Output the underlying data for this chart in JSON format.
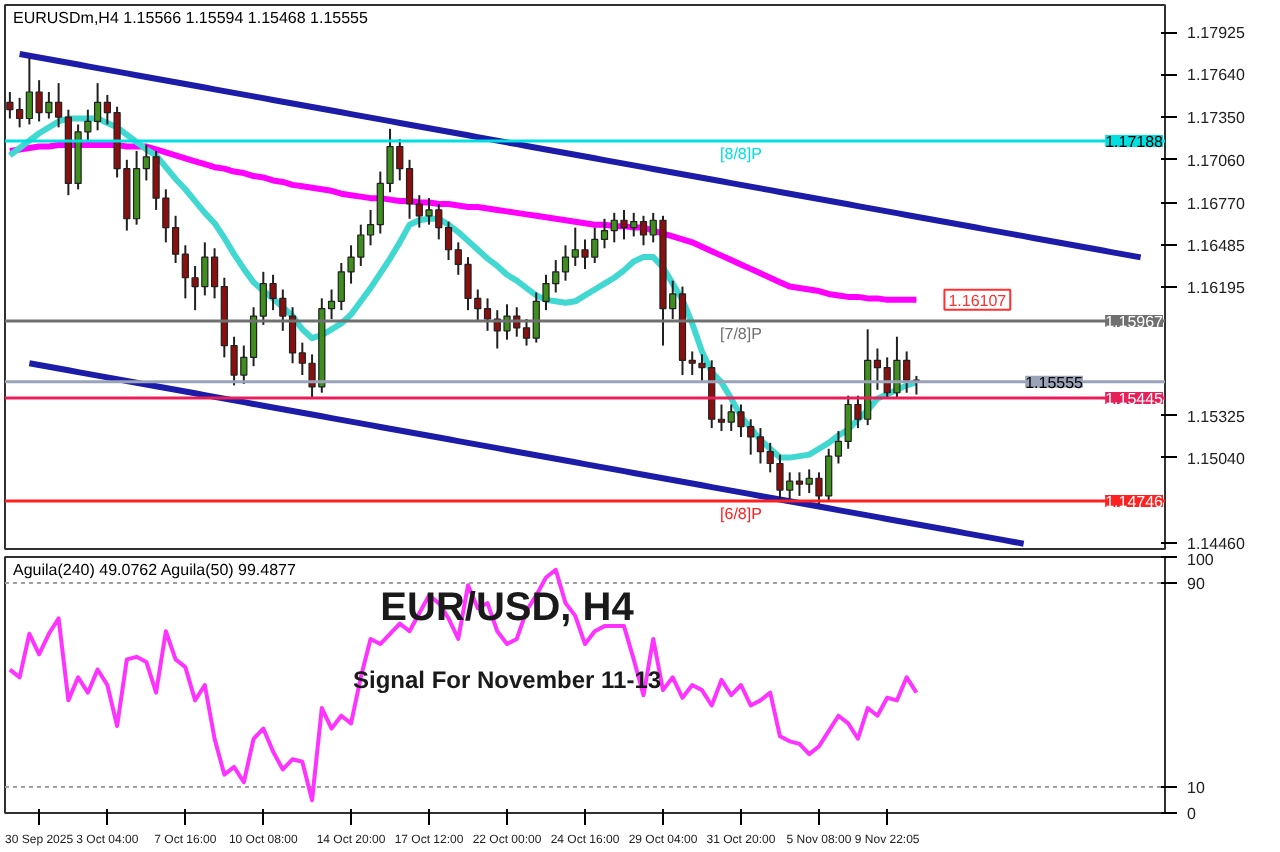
{
  "chart_data": [
    {
      "type": "candlestick",
      "title": "EURUSDm,H4  1.15566 1.15594 1.15468 1.15555",
      "categories": [
        null,
        null,
        null,
        "30 Sep 2025",
        null,
        null,
        null,
        null,
        null,
        null,
        "3 Oct 04:00",
        null,
        null,
        null,
        null,
        null,
        null,
        null,
        "7 Oct 16:00",
        null,
        null,
        null,
        null,
        null,
        null,
        null,
        "10 Oct 08:00",
        null,
        null,
        null,
        null,
        null,
        null,
        null,
        null,
        "14 Oct 20:00",
        null,
        null,
        null,
        null,
        null,
        null,
        null,
        "17 Oct 12:00",
        null,
        null,
        null,
        null,
        null,
        null,
        null,
        "22 Oct 00:00",
        null,
        null,
        null,
        null,
        null,
        null,
        null,
        "24 Oct 16:00",
        null,
        null,
        null,
        null,
        null,
        null,
        null,
        "29 Oct 04:00",
        null,
        null,
        null,
        null,
        null,
        null,
        null,
        "31 Oct 20:00",
        null,
        null,
        null,
        null,
        null,
        null,
        null,
        "5 Nov 08:00",
        null,
        null,
        null,
        null,
        null,
        null,
        "9 Nov 22:05",
        null,
        null,
        null,
        null,
        null,
        null,
        null,
        null,
        null,
        null,
        null,
        null,
        null,
        null,
        null,
        null,
        null,
        null,
        null,
        null,
        null,
        null,
        null,
        null,
        null,
        null,
        null,
        null
      ],
      "ohlc": [
        [
          1.1745,
          1.1752,
          1.1734,
          1.174
        ],
        [
          1.174,
          1.1748,
          1.1728,
          1.1734
        ],
        [
          1.1734,
          1.1775,
          1.173,
          1.1752
        ],
        [
          1.1752,
          1.176,
          1.1732,
          1.1738
        ],
        [
          1.1738,
          1.1752,
          1.1734,
          1.1745
        ],
        [
          1.1745,
          1.1758,
          1.1728,
          1.1735
        ],
        [
          1.1735,
          1.174,
          1.1682,
          1.169
        ],
        [
          1.169,
          1.173,
          1.1686,
          1.1725
        ],
        [
          1.1725,
          1.174,
          1.1718,
          1.1732
        ],
        [
          1.1732,
          1.1758,
          1.1726,
          1.1745
        ],
        [
          1.1745,
          1.175,
          1.173,
          1.1738
        ],
        [
          1.1738,
          1.1742,
          1.1694,
          1.17
        ],
        [
          1.17,
          1.1706,
          1.1658,
          1.1666
        ],
        [
          1.1666,
          1.1712,
          1.1662,
          1.17
        ],
        [
          1.17,
          1.1716,
          1.1692,
          1.1708
        ],
        [
          1.1708,
          1.1712,
          1.1672,
          1.168
        ],
        [
          1.168,
          1.1686,
          1.165,
          1.166
        ],
        [
          1.166,
          1.1668,
          1.1636,
          1.1642
        ],
        [
          1.1642,
          1.1648,
          1.1612,
          1.1626
        ],
        [
          1.1626,
          1.1634,
          1.1604,
          1.162
        ],
        [
          1.162,
          1.165,
          1.1614,
          1.164
        ],
        [
          1.164,
          1.1646,
          1.1612,
          1.162
        ],
        [
          1.162,
          1.1626,
          1.1572,
          1.158
        ],
        [
          1.158,
          1.1586,
          1.1553,
          1.156
        ],
        [
          1.156,
          1.158,
          1.1554,
          1.1572
        ],
        [
          1.1572,
          1.1606,
          1.1566,
          1.16
        ],
        [
          1.16,
          1.163,
          1.1594,
          1.1622
        ],
        [
          1.1622,
          1.1628,
          1.1604,
          1.1612
        ],
        [
          1.1612,
          1.1618,
          1.159,
          1.16
        ],
        [
          1.16,
          1.1606,
          1.1568,
          1.1575
        ],
        [
          1.1575,
          1.1582,
          1.156,
          1.1568
        ],
        [
          1.1568,
          1.1574,
          1.1544,
          1.1552
        ],
        [
          1.1552,
          1.1612,
          1.1548,
          1.1605
        ],
        [
          1.1605,
          1.1618,
          1.1598,
          1.161
        ],
        [
          1.161,
          1.1636,
          1.1604,
          1.163
        ],
        [
          1.163,
          1.1648,
          1.1622,
          1.164
        ],
        [
          1.164,
          1.1662,
          1.1634,
          1.1655
        ],
        [
          1.1655,
          1.1672,
          1.1648,
          1.1662
        ],
        [
          1.1662,
          1.1698,
          1.1656,
          1.169
        ],
        [
          1.169,
          1.1727,
          1.1684,
          1.1715
        ],
        [
          1.1715,
          1.172,
          1.1692,
          1.17
        ],
        [
          1.17,
          1.1706,
          1.1666,
          1.1676
        ],
        [
          1.1676,
          1.1682,
          1.166,
          1.1668
        ],
        [
          1.1668,
          1.168,
          1.1662,
          1.1672
        ],
        [
          1.1672,
          1.1676,
          1.1652,
          1.166
        ],
        [
          1.166,
          1.1664,
          1.1638,
          1.1645
        ],
        [
          1.1645,
          1.165,
          1.1628,
          1.1635
        ],
        [
          1.1635,
          1.164,
          1.1604,
          1.1612
        ],
        [
          1.1612,
          1.1618,
          1.1596,
          1.1605
        ],
        [
          1.1605,
          1.1612,
          1.159,
          1.1598
        ],
        [
          1.1598,
          1.1604,
          1.1578,
          1.159
        ],
        [
          1.159,
          1.1608,
          1.1584,
          1.16
        ],
        [
          1.16,
          1.1606,
          1.1586,
          1.1592
        ],
        [
          1.1592,
          1.1598,
          1.158,
          1.1585
        ],
        [
          1.1585,
          1.1616,
          1.1582,
          1.161
        ],
        [
          1.161,
          1.1628,
          1.1604,
          1.1622
        ],
        [
          1.1622,
          1.1638,
          1.1616,
          1.163
        ],
        [
          1.163,
          1.1648,
          1.1624,
          1.164
        ],
        [
          1.164,
          1.166,
          1.1634,
          1.1645
        ],
        [
          1.1645,
          1.1652,
          1.1632,
          1.164
        ],
        [
          1.164,
          1.166,
          1.1636,
          1.1652
        ],
        [
          1.1652,
          1.1666,
          1.1646,
          1.1658
        ],
        [
          1.1658,
          1.167,
          1.165,
          1.1665
        ],
        [
          1.1665,
          1.1672,
          1.1652,
          1.166
        ],
        [
          1.166,
          1.167,
          1.1654,
          1.1664
        ],
        [
          1.1664,
          1.1668,
          1.1648,
          1.1655
        ],
        [
          1.1655,
          1.167,
          1.165,
          1.1665
        ],
        [
          1.1665,
          1.1668,
          1.158,
          1.1605
        ],
        [
          1.1605,
          1.1624,
          1.1598,
          1.1615
        ],
        [
          1.1615,
          1.162,
          1.156,
          1.157
        ],
        [
          1.157,
          1.1576,
          1.156,
          1.1568
        ],
        [
          1.1568,
          1.1574,
          1.1556,
          1.1565
        ],
        [
          1.1565,
          1.157,
          1.1524,
          1.153
        ],
        [
          1.153,
          1.154,
          1.1522,
          1.1528
        ],
        [
          1.1528,
          1.154,
          1.1522,
          1.1535
        ],
        [
          1.1535,
          1.154,
          1.1518,
          1.1525
        ],
        [
          1.1525,
          1.153,
          1.1506,
          1.1518
        ],
        [
          1.1518,
          1.1524,
          1.15,
          1.1508
        ],
        [
          1.1508,
          1.1514,
          1.1494,
          1.15
        ],
        [
          1.15,
          1.1506,
          1.1476,
          1.1482
        ],
        [
          1.1482,
          1.1494,
          1.1476,
          1.1488
        ],
        [
          1.1488,
          1.1494,
          1.1478,
          1.1486
        ],
        [
          1.1486,
          1.1496,
          1.148,
          1.149
        ],
        [
          1.149,
          1.1494,
          1.1472,
          1.1478
        ],
        [
          1.1478,
          1.151,
          1.1474,
          1.1505
        ],
        [
          1.1505,
          1.1522,
          1.15,
          1.1515
        ],
        [
          1.1515,
          1.1546,
          1.151,
          1.154
        ],
        [
          1.154,
          1.1546,
          1.1524,
          1.153
        ],
        [
          1.153,
          1.1591,
          1.1526,
          1.157
        ],
        [
          1.157,
          1.1578,
          1.155,
          1.1565
        ],
        [
          1.1565,
          1.1572,
          1.1544,
          1.1548
        ],
        [
          1.1548,
          1.1586,
          1.1544,
          1.157
        ],
        [
          1.157,
          1.1576,
          1.1548,
          1.15566
        ],
        [
          1.15566,
          1.15594,
          1.15468,
          1.15555
        ],
        null,
        null,
        null,
        null,
        null,
        null,
        null,
        null,
        null,
        null,
        null,
        null,
        null,
        null,
        null,
        null,
        null,
        null,
        null,
        null,
        null,
        null,
        null,
        null,
        null
      ],
      "series": [
        {
          "type": "line",
          "color": "#ff00ff",
          "values": [
            1.1712,
            1.1713,
            1.1714,
            1.1715,
            1.1715,
            1.1716,
            1.1716,
            1.1716,
            1.1716,
            1.1716,
            1.1716,
            1.1716,
            1.1715,
            1.1715,
            1.1715,
            1.1713,
            1.1711,
            1.1709,
            1.1707,
            1.1705,
            1.1703,
            1.1701,
            1.17,
            1.1698,
            1.1697,
            1.1695,
            1.1694,
            1.1692,
            1.1691,
            1.1689,
            1.1688,
            1.1687,
            1.1686,
            1.1685,
            1.1683,
            1.1682,
            1.1681,
            1.168,
            1.168,
            1.1679,
            1.1678,
            1.1678,
            1.1677,
            1.1677,
            1.1676,
            1.1676,
            1.1675,
            1.1674,
            1.1674,
            1.1673,
            1.1672,
            1.1671,
            1.167,
            1.1669,
            1.1668,
            1.1667,
            1.1666,
            1.1665,
            1.1664,
            1.1663,
            1.1662,
            1.1662,
            1.1661,
            1.1661,
            1.166,
            1.166,
            1.1658,
            1.1656,
            1.1654,
            1.1652,
            1.165,
            1.1647,
            1.1644,
            1.1641,
            1.1638,
            1.1635,
            1.1632,
            1.1629,
            1.1626,
            1.1623,
            1.162,
            1.1619,
            1.1618,
            1.1617,
            1.1615,
            1.1614,
            1.1613,
            1.1613,
            1.1612,
            1.1612,
            1.1611,
            1.1611,
            1.1611,
            1.1611,
            null,
            null,
            null,
            null,
            null,
            null,
            null,
            null,
            null,
            null,
            null,
            null,
            null,
            null,
            null,
            null,
            null,
            null,
            null,
            null,
            null,
            null,
            null,
            null,
            null
          ]
        },
        {
          "type": "line",
          "color": "#40d8d0",
          "values": [
            1.1709,
            1.1714,
            1.1719,
            1.1724,
            1.1728,
            1.1732,
            1.1734,
            1.1734,
            1.1734,
            1.1734,
            1.1731,
            1.1728,
            1.1723,
            1.1718,
            1.1713,
            1.1709,
            1.1701,
            1.1693,
            1.1686,
            1.1678,
            1.167,
            1.1663,
            1.1653,
            1.1642,
            1.1632,
            1.1623,
            1.1617,
            1.1612,
            1.1606,
            1.16,
            1.1591,
            1.1585,
            1.1587,
            1.1591,
            1.1595,
            1.1601,
            1.161,
            1.1619,
            1.1629,
            1.1639,
            1.165,
            1.1662,
            1.1665,
            1.1666,
            1.1666,
            1.1662,
            1.1657,
            1.1651,
            1.1645,
            1.1639,
            1.1634,
            1.1628,
            1.1624,
            1.1619,
            1.1614,
            1.1611,
            1.161,
            1.1609,
            1.161,
            1.1614,
            1.1618,
            1.1622,
            1.1626,
            1.1631,
            1.1637,
            1.164,
            1.164,
            1.1633,
            1.1622,
            1.1611,
            1.1595,
            1.1576,
            1.1562,
            1.1555,
            1.1544,
            1.1532,
            1.1524,
            1.1516,
            1.151,
            1.1504,
            1.1504,
            1.1505,
            1.1506,
            1.151,
            1.1514,
            1.1519,
            1.1523,
            1.153,
            1.1536,
            1.1544,
            1.1547,
            1.155,
            1.1553,
            1.1555,
            null,
            null,
            null,
            null,
            null,
            null,
            null,
            null,
            null,
            null,
            null,
            null,
            null,
            null,
            null,
            null,
            null,
            null,
            null,
            null,
            null,
            null,
            null,
            null,
            null
          ]
        },
        {
          "type": "line",
          "color": "#1c1ca8",
          "values": [
            null,
            1.17778,
            1.17766,
            1.17754,
            1.17742,
            1.1773,
            1.17718,
            1.17706,
            1.17694,
            1.17682,
            1.1767,
            1.17658,
            1.17646,
            1.17634,
            1.17622,
            1.1761,
            1.17598,
            1.17586,
            1.17574,
            1.17562,
            1.1755,
            1.17538,
            1.17526,
            1.17514,
            1.17502,
            1.1749,
            1.17478,
            1.17466,
            1.17454,
            1.17442,
            1.1743,
            1.17418,
            1.17406,
            1.17394,
            1.17382,
            1.1737,
            1.17358,
            1.17346,
            1.17334,
            1.17322,
            1.1731,
            1.17298,
            1.17286,
            1.17274,
            1.17262,
            1.1725,
            1.17238,
            1.17226,
            1.17214,
            1.17202,
            1.1719,
            1.17178,
            1.17166,
            1.17154,
            1.17142,
            1.1713,
            1.17118,
            1.17106,
            1.17094,
            1.17082,
            1.1707,
            1.17058,
            1.17046,
            1.17034,
            1.17022,
            1.1701,
            1.16998,
            1.16986,
            1.16974,
            1.16962,
            1.1695,
            1.16938,
            1.16926,
            1.16914,
            1.16902,
            1.1689,
            1.16878,
            1.16866,
            1.16854,
            1.16842,
            1.1683,
            1.16818,
            1.16806,
            1.16794,
            1.16782,
            1.1677,
            1.16758,
            1.16746,
            1.16734,
            1.16722,
            1.1671,
            1.16698,
            1.16686,
            1.16674,
            1.16662,
            1.1665,
            1.16638,
            1.16626,
            1.16614,
            1.16602,
            1.1659,
            1.16578,
            1.16566,
            1.16554,
            1.16542,
            1.1653,
            1.16518,
            1.16506,
            1.16494,
            1.16482,
            1.1647,
            1.16458,
            1.16446,
            1.16434,
            1.16422,
            1.1641,
            1.16398,
            null,
            null
          ]
        },
        {
          "type": "line",
          "color": "#1c1ca8",
          "values": [
            null,
            null,
            1.1568,
            1.15668,
            1.15656,
            1.15644,
            1.15632,
            1.1562,
            1.15608,
            1.15596,
            1.15584,
            1.15572,
            1.1556,
            1.15548,
            1.15536,
            1.15524,
            1.15512,
            1.155,
            1.15488,
            1.15476,
            1.15464,
            1.15452,
            1.1544,
            1.15428,
            1.15416,
            1.15404,
            1.15392,
            1.1538,
            1.15368,
            1.15356,
            1.15344,
            1.15332,
            1.1532,
            1.15308,
            1.15296,
            1.15284,
            1.15272,
            1.1526,
            1.15248,
            1.15236,
            1.15224,
            1.15212,
            1.152,
            1.15188,
            1.15176,
            1.15164,
            1.15152,
            1.1514,
            1.15128,
            1.15116,
            1.15104,
            1.15092,
            1.1508,
            1.15068,
            1.15056,
            1.15044,
            1.15032,
            1.1502,
            1.15008,
            1.14996,
            1.14984,
            1.14972,
            1.1496,
            1.14948,
            1.14936,
            1.14924,
            1.14912,
            1.149,
            1.14888,
            1.14876,
            1.14864,
            1.14852,
            1.1484,
            1.14828,
            1.14816,
            1.14804,
            1.14792,
            1.1478,
            1.14768,
            1.14756,
            1.14744,
            1.14732,
            1.1472,
            1.14708,
            1.14696,
            1.14684,
            1.14672,
            1.1466,
            1.14648,
            1.14636,
            1.14624,
            1.14612,
            1.146,
            1.14588,
            1.14576,
            1.14564,
            1.14552,
            1.1454,
            1.14528,
            1.14516,
            1.14504,
            1.14492,
            1.1448,
            1.14468,
            1.14456,
            null,
            null,
            null,
            null,
            null,
            null,
            null,
            null,
            null,
            null,
            null,
            null,
            null,
            null
          ]
        }
      ],
      "ylim": [
        1.1442,
        1.1811
      ],
      "yticks": [
        {
          "value": 1.17925,
          "label": "1.17925"
        },
        {
          "value": 1.1764,
          "label": "1.17640"
        },
        {
          "value": 1.1735,
          "label": "1.17350"
        },
        {
          "value": 1.1706,
          "label": "1.17060"
        },
        {
          "value": 1.1677,
          "label": "1.16770"
        },
        {
          "value": 1.16485,
          "label": "1.16485"
        },
        {
          "value": 1.16195,
          "label": "1.16195"
        },
        {
          "value": 1.15325,
          "label": "1.15325"
        },
        {
          "value": 1.1504,
          "label": "1.15040"
        },
        {
          "value": 1.1446,
          "label": "1.14460"
        }
      ],
      "tick_labels": "y",
      "ref_lines": [
        {
          "axis": "y",
          "value": 1.17188,
          "label": "1.17188",
          "color": "#00e0e0"
        },
        {
          "axis": "y",
          "value": 1.15967,
          "label": "1.15967",
          "color": "#707070"
        },
        {
          "axis": "y",
          "value": 1.15555,
          "label": "1.15555",
          "color": "#9aa4b8"
        },
        {
          "axis": "y",
          "value": 1.15445,
          "label": "1.15445",
          "color": "#e8205a"
        },
        {
          "axis": "y",
          "value": 1.14746,
          "label": "1.14746",
          "color": "#ff2020"
        }
      ],
      "annotations": [
        {
          "text": "[8/8]P",
          "x": "31 Oct 20:00",
          "y": 1.17188
        },
        {
          "text": "[7/8]P",
          "x": "31 Oct 20:00",
          "y": 1.15967
        },
        {
          "text": "[6/8]P",
          "x": "31 Oct 20:00",
          "y": 1.14746
        },
        "1.16107"
      ]
    },
    {
      "type": "line",
      "title": "Aguila(240) 49.0762  Aguila(50) 99.4877",
      "categories": [
        null,
        null,
        null,
        "30 Sep 2025",
        null,
        null,
        null,
        null,
        null,
        null,
        "3 Oct 04:00",
        null,
        null,
        null,
        null,
        null,
        null,
        null,
        "7 Oct 16:00",
        null,
        null,
        null,
        null,
        null,
        null,
        null,
        "10 Oct 08:00",
        null,
        null,
        null,
        null,
        null,
        null,
        null,
        null,
        "14 Oct 20:00",
        null,
        null,
        null,
        null,
        null,
        null,
        null,
        "17 Oct 12:00",
        null,
        null,
        null,
        null,
        null,
        null,
        null,
        "22 Oct 00:00",
        null,
        null,
        null,
        null,
        null,
        null,
        null,
        "24 Oct 16:00",
        null,
        null,
        null,
        null,
        null,
        null,
        null,
        "29 Oct 04:00",
        null,
        null,
        null,
        null,
        null,
        null,
        null,
        "31 Oct 20:00",
        null,
        null,
        null,
        null,
        null,
        null,
        null,
        "5 Nov 08:00",
        null,
        null,
        null,
        null,
        null,
        null,
        "9 Nov 22:05",
        null,
        null,
        null,
        null,
        null,
        null,
        null,
        null,
        null,
        null,
        null,
        null,
        null,
        null,
        null,
        null,
        null,
        null,
        null,
        null,
        null,
        null,
        null,
        null,
        null,
        null,
        null,
        null
      ],
      "series": [
        {
          "color": "#ff33ff",
          "values": [
            56,
            53,
            70,
            62,
            70,
            76,
            44,
            53,
            47,
            56,
            50,
            34,
            60,
            61,
            59,
            47,
            71,
            60,
            57,
            44,
            50,
            29,
            15,
            18,
            12,
            29,
            33,
            24,
            17,
            21,
            20,
            5,
            41,
            33,
            38,
            35,
            53,
            68,
            66,
            70,
            74,
            71,
            78,
            85,
            82,
            76,
            68,
            89,
            80,
            82,
            71,
            66,
            68,
            79,
            85,
            92,
            95,
            82,
            77,
            66,
            71,
            73,
            73,
            73,
            60,
            46,
            68,
            48,
            53,
            45,
            50,
            48,
            42,
            52,
            46,
            50,
            42,
            44,
            47,
            30,
            28,
            27,
            23,
            26,
            32,
            38,
            35,
            29,
            41,
            38,
            45,
            44,
            53,
            47,
            null,
            null,
            null,
            null,
            null,
            null,
            null,
            null,
            null,
            null,
            null,
            null,
            null,
            null,
            null,
            null,
            null,
            null,
            null,
            null,
            null,
            null,
            null,
            null,
            null
          ]
        }
      ],
      "ylim": [
        0,
        100
      ],
      "yticks": [
        0,
        10,
        90,
        100
      ],
      "grid": "y",
      "annotations": [
        "EUR/USD, H4",
        "Signal For November 11-13"
      ]
    }
  ]
}
